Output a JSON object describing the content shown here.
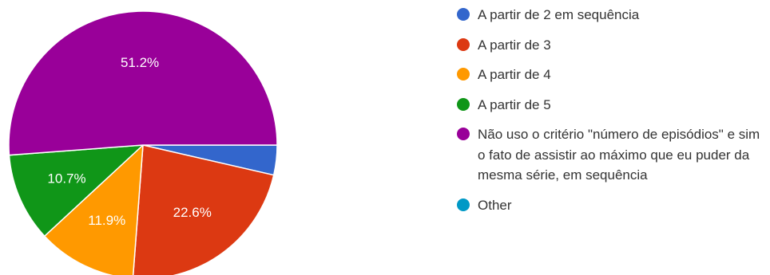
{
  "chart_data": {
    "type": "pie",
    "categories": [
      "A partir de 2 em sequência",
      "A partir de 3",
      "A partir de 4",
      "A partir de 5",
      "Não uso o critério \"número de episódios\" e sim o fato de assistir ao máximo que eu puder da mesma série, em sequência",
      "Other"
    ],
    "values": [
      3.6,
      22.6,
      11.9,
      10.7,
      51.2,
      0
    ],
    "data_labels": [
      "",
      "22.6%",
      "11.9%",
      "10.7%",
      "51.2%",
      ""
    ],
    "colors": [
      "#3366cc",
      "#dc3912",
      "#ff9900",
      "#109618",
      "#990099",
      "#0099c6"
    ],
    "legend_position": "right",
    "start_angle_deg": 90,
    "direction": "clockwise"
  }
}
